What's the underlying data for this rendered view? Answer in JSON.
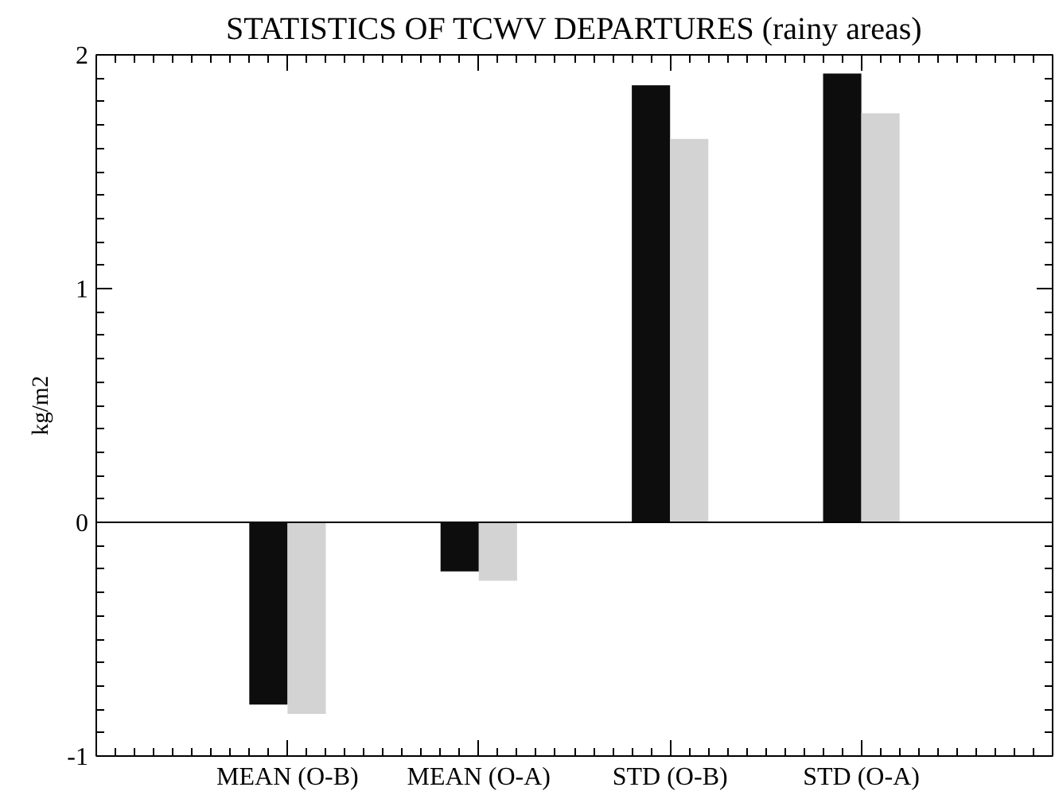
{
  "chart_data": {
    "type": "bar",
    "title": "STATISTICS OF TCWV DEPARTURES (rainy areas)",
    "ylabel": "kg/m2",
    "categories": [
      "MEAN (O-B)",
      "MEAN (O-A)",
      "STD (O-B)",
      "STD (O-A)"
    ],
    "series": [
      {
        "color": "#0d0d0d",
        "values": [
          -0.78,
          -0.21,
          1.87,
          1.92
        ]
      },
      {
        "color": "#d3d3d3",
        "values": [
          -0.82,
          -0.25,
          1.64,
          1.75
        ]
      }
    ],
    "ylim": [
      -1,
      2
    ],
    "yticks": [
      -1,
      0,
      1,
      2
    ],
    "ref_lines": [
      {
        "axis": "y",
        "value": 0
      }
    ],
    "grid": false
  }
}
